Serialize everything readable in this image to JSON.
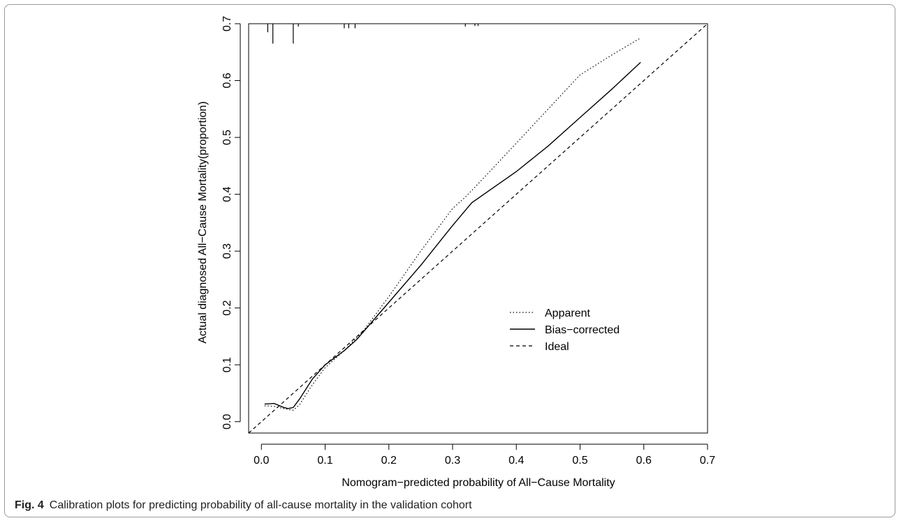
{
  "caption": {
    "label": "Fig. 4",
    "text": "Calibration plots for predicting probability of all-cause mortality in the validation cohort"
  },
  "chart_data": {
    "type": "line",
    "title": "",
    "xlabel": "Nomogram−predicted probability of All−Cause Mortality",
    "ylabel": "Actual diagnosed All−Cause Mortality(proportion)",
    "xlim": [
      -0.02,
      0.7
    ],
    "ylim": [
      -0.02,
      0.7
    ],
    "x_ticks": [
      0.0,
      0.1,
      0.2,
      0.3,
      0.4,
      0.5,
      0.6,
      0.7
    ],
    "x_tick_labels": [
      "0.0",
      "0.1",
      "0.2",
      "0.3",
      "0.4",
      "0.5",
      "0.6",
      "0.7"
    ],
    "y_ticks": [
      0.0,
      0.1,
      0.2,
      0.3,
      0.4,
      0.5,
      0.6,
      0.7
    ],
    "y_tick_labels": [
      "0.0",
      "0.1",
      "0.2",
      "0.3",
      "0.4",
      "0.5",
      "0.6",
      "0.7"
    ],
    "grid": false,
    "legend_position": "center-right",
    "series": [
      {
        "name": "Apparent",
        "style": "dotted",
        "x": [
          0.005,
          0.02,
          0.035,
          0.05,
          0.06,
          0.08,
          0.1,
          0.13,
          0.16,
          0.2,
          0.25,
          0.3,
          0.32,
          0.35,
          0.4,
          0.45,
          0.5,
          0.55,
          0.595
        ],
        "y": [
          0.028,
          0.027,
          0.023,
          0.02,
          0.03,
          0.065,
          0.095,
          0.125,
          0.16,
          0.22,
          0.3,
          0.375,
          0.395,
          0.43,
          0.49,
          0.55,
          0.61,
          0.645,
          0.675
        ]
      },
      {
        "name": "Bias−corrected",
        "style": "solid",
        "x": [
          0.005,
          0.02,
          0.035,
          0.042,
          0.05,
          0.06,
          0.08,
          0.1,
          0.13,
          0.15,
          0.2,
          0.25,
          0.3,
          0.33,
          0.4,
          0.45,
          0.5,
          0.55,
          0.595
        ],
        "y": [
          0.031,
          0.032,
          0.025,
          0.023,
          0.025,
          0.04,
          0.075,
          0.1,
          0.125,
          0.145,
          0.21,
          0.275,
          0.345,
          0.385,
          0.44,
          0.485,
          0.535,
          0.585,
          0.632
        ]
      },
      {
        "name": "Ideal",
        "style": "dashed",
        "x": [
          -0.02,
          0.7
        ],
        "y": [
          -0.02,
          0.7
        ]
      }
    ],
    "rug": {
      "x": [
        0.01,
        0.018,
        0.05,
        0.058,
        0.13,
        0.137,
        0.147,
        0.32,
        0.335,
        0.34
      ],
      "heights": [
        0.015,
        0.035,
        0.035,
        0.005,
        0.008,
        0.008,
        0.008,
        0.005,
        0.004,
        0.004
      ]
    }
  }
}
